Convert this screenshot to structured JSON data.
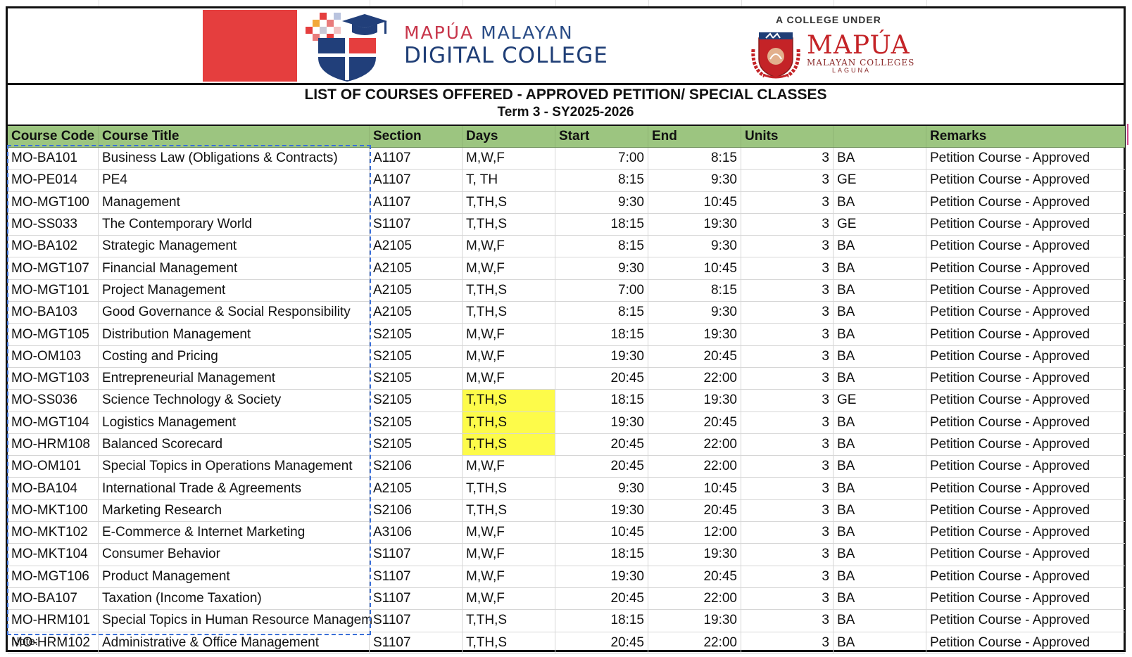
{
  "header": {
    "mdc_line1_a": "MAPÚA",
    "mdc_line1_b": "MALAYAN",
    "mdc_line2": "DIGITAL COLLEGE",
    "college_under": "A COLLEGE UNDER",
    "mapua_word": "MAPÚA",
    "mapua_sub1": "MALAYAN COLLEGES",
    "mapua_sub2": "LAGUNA"
  },
  "title": "LIST OF COURSES OFFERED - APPROVED PETITION/ SPECIAL CLASSES",
  "subtitle": "Term 3 - SY2025-2026",
  "columns": [
    "Course Code",
    "Course Title",
    "Section",
    "Days",
    "Start",
    "End",
    "Units",
    "",
    "Remarks"
  ],
  "colors": {
    "header_green": "#9cc580",
    "highlight_yellow": "#fdfb4a",
    "brand_red": "#e53e3e",
    "brand_blue": "#1f3e76"
  },
  "rows": [
    [
      "MO-BA101",
      "Business Law (Obligations & Contracts)",
      "A1107",
      "M,W,F",
      "7:00",
      "8:15",
      "3",
      "BA",
      "Petition Course - Approved"
    ],
    [
      "MO-PE014",
      "PE4",
      "A1107",
      "T, TH",
      "8:15",
      "9:30",
      "3",
      "GE",
      "Petition Course - Approved"
    ],
    [
      "MO-MGT100",
      "Management",
      "A1107",
      "T,TH,S",
      "9:30",
      "10:45",
      "3",
      "BA",
      "Petition Course - Approved"
    ],
    [
      "MO-SS033",
      "The Contemporary World",
      "S1107",
      "T,TH,S",
      "18:15",
      "19:30",
      "3",
      "GE",
      "Petition Course - Approved"
    ],
    [
      "MO-BA102",
      "Strategic Management",
      "A2105",
      "M,W,F",
      "8:15",
      "9:30",
      "3",
      "BA",
      "Petition Course - Approved"
    ],
    [
      "MO-MGT107",
      "Financial Management",
      "A2105",
      "M,W,F",
      "9:30",
      "10:45",
      "3",
      "BA",
      "Petition Course - Approved"
    ],
    [
      "MO-MGT101",
      "Project Management",
      "A2105",
      "T,TH,S",
      "7:00",
      "8:15",
      "3",
      "BA",
      "Petition Course - Approved"
    ],
    [
      "MO-BA103",
      "Good Governance & Social Responsibility",
      "A2105",
      "T,TH,S",
      "8:15",
      "9:30",
      "3",
      "BA",
      "Petition Course - Approved"
    ],
    [
      "MO-MGT105",
      "Distribution Management",
      "S2105",
      "M,W,F",
      "18:15",
      "19:30",
      "3",
      "BA",
      "Petition Course - Approved"
    ],
    [
      "MO-OM103",
      "Costing and Pricing",
      "S2105",
      "M,W,F",
      "19:30",
      "20:45",
      "3",
      "BA",
      "Petition Course - Approved"
    ],
    [
      "MO-MGT103",
      "Entrepreneurial Management",
      "S2105",
      "M,W,F",
      "20:45",
      "22:00",
      "3",
      "BA",
      "Petition Course - Approved"
    ],
    [
      "MO-SS036",
      "Science Technology & Society",
      "S2105",
      "T,TH,S",
      "18:15",
      "19:30",
      "3",
      "GE",
      "Petition Course - Approved"
    ],
    [
      "MO-MGT104",
      "Logistics Management",
      "S2105",
      "T,TH,S",
      "19:30",
      "20:45",
      "3",
      "BA",
      "Petition Course - Approved"
    ],
    [
      "MO-HRM108",
      "Balanced Scorecard",
      "S2105",
      "T,TH,S",
      "20:45",
      "22:00",
      "3",
      "BA",
      "Petition Course - Approved"
    ],
    [
      "MO-OM101",
      "Special Topics in Operations Management",
      "S2106",
      "M,W,F",
      "20:45",
      "22:00",
      "3",
      "BA",
      "Petition Course - Approved"
    ],
    [
      "MO-BA104",
      "International Trade & Agreements",
      "A2105",
      "T,TH,S",
      "9:30",
      "10:45",
      "3",
      "BA",
      "Petition Course - Approved"
    ],
    [
      "MO-MKT100",
      "Marketing Research",
      "S2106",
      "T,TH,S",
      "19:30",
      "20:45",
      "3",
      "BA",
      "Petition Course - Approved"
    ],
    [
      "MO-MKT102",
      "E-Commerce & Internet Marketing",
      "A3106",
      "M,W,F",
      "10:45",
      "12:00",
      "3",
      "BA",
      "Petition Course - Approved"
    ],
    [
      "MO-MKT104",
      "Consumer Behavior",
      "S1107",
      "M,W,F",
      "18:15",
      "19:30",
      "3",
      "BA",
      "Petition Course - Approved"
    ],
    [
      "MO-MGT106",
      "Product Management",
      "S1107",
      "M,W,F",
      "19:30",
      "20:45",
      "3",
      "BA",
      "Petition Course - Approved"
    ],
    [
      "MO-BA107",
      "Taxation (Income Taxation)",
      "S1107",
      "M,W,F",
      "20:45",
      "22:00",
      "3",
      "BA",
      "Petition Course - Approved"
    ],
    [
      "MO-HRM101",
      "Special Topics in Human Resource Managem",
      "S1107",
      "T,TH,S",
      "18:15",
      "19:30",
      "3",
      "BA",
      "Petition Course - Approved"
    ],
    [
      "MO-HRM102",
      "Administrative & Office Management",
      "S1107",
      "T,TH,S",
      "20:45",
      "22:00",
      "3",
      "BA",
      "Petition Course - Approved"
    ]
  ],
  "highlighted_days_rows": [
    11,
    12,
    13
  ],
  "note": "Note:"
}
